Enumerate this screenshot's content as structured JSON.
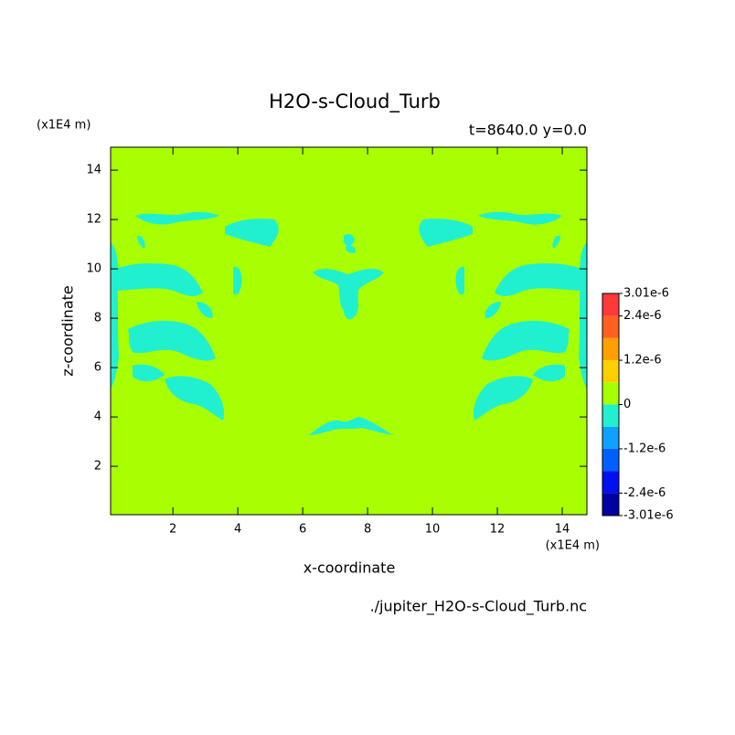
{
  "chart_data": {
    "type": "contour",
    "title": "H2O-s-Cloud_Turb",
    "subtitle": "t=8640.0 y=0.0",
    "x_label": "x-coordinate",
    "y_label": "z-coordinate",
    "x_unit": "(x1E4 m)",
    "y_unit": "(x1E4 m)",
    "source": "./jupiter_H2O-s-Cloud_Turb.nc",
    "xlim": [
      0.08,
      14.76
    ],
    "ylim": [
      0.04,
      14.93
    ],
    "xticks": [
      2,
      4,
      6,
      8,
      10,
      12,
      14
    ],
    "yticks": [
      2,
      4,
      6,
      8,
      10,
      12,
      14
    ],
    "colorbar": {
      "levels": [
        -3.01e-06,
        -2.4e-06,
        -1.8e-06,
        -1.2e-06,
        -6e-07,
        0,
        6e-07,
        1.2e-06,
        1.8e-06,
        2.4e-06,
        3.01e-06
      ],
      "colors": [
        "#0000a0",
        "#0010f0",
        "#0060ff",
        "#10a0ff",
        "#20f0d0",
        "#a8ff00",
        "#ffd000",
        "#ffa000",
        "#ff6020",
        "#ff3838"
      ],
      "ticks": [
        {
          "value": 3.01e-06,
          "label": "3.01e-6"
        },
        {
          "value": 2.4e-06,
          "label": "2.4e-6"
        },
        {
          "value": 1.2e-06,
          "label": "1.2e-6"
        },
        0,
        {
          "value": -1.2e-06,
          "label": "-1.2e-6"
        },
        {
          "value": -2.4e-06,
          "label": "-2.4e-6"
        },
        {
          "value": -3.01e-06,
          "label": "-3.01e-6"
        }
      ]
    }
  }
}
